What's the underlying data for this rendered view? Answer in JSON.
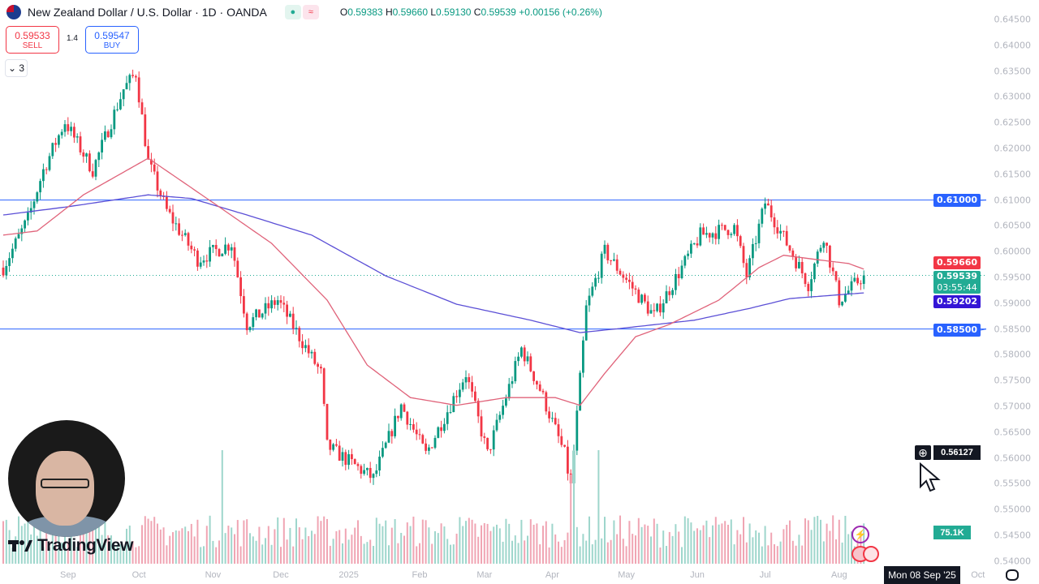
{
  "header": {
    "title": "New Zealand Dollar / U.S. Dollar · 1D · OANDA",
    "open_label": "O",
    "open": "0.59383",
    "high_label": "H",
    "high": "0.59660",
    "low_label": "L",
    "low": "0.59130",
    "close_label": "C",
    "close": "0.59539",
    "change": "+0.00156 (+0.26%)",
    "market_status_icon": "≈"
  },
  "trade": {
    "sell_price": "0.59533",
    "sell_label": "SELL",
    "spread": "1.4",
    "buy_price": "0.59547",
    "buy_label": "BUY"
  },
  "indicators_toggle": "⌄ 3",
  "price_tags": {
    "line_upper": "0.61000",
    "line_lower": "0.58500",
    "ma_fast": "0.59660",
    "last": "0.59539",
    "countdown": "03:55:44",
    "ma_slow": "0.59202",
    "crosshair": "0.56127",
    "volume": "75.1K"
  },
  "crosshair_date": "Mon 08 Sep '25",
  "branding": "TradingView",
  "colors": {
    "up": "#089981",
    "down": "#f23645",
    "ma_fast": "#e0637a",
    "ma_slow": "#5b4fd6",
    "hline": "#2962ff"
  },
  "chart_data": {
    "type": "candlestick",
    "title": "New Zealand Dollar / U.S. Dollar · 1D · OANDA",
    "ylim": [
      0.54,
      0.645
    ],
    "y_ticks": [
      "0.64500",
      "0.64000",
      "0.63500",
      "0.63000",
      "0.62500",
      "0.62000",
      "0.61500",
      "0.61000",
      "0.60500",
      "0.60000",
      "0.59500",
      "0.59000",
      "0.58500",
      "0.58000",
      "0.57500",
      "0.57000",
      "0.56500",
      "0.56000",
      "0.55500",
      "0.55000",
      "0.54500",
      "0.54000"
    ],
    "x_ticks": [
      {
        "label": "Sep",
        "i": 21
      },
      {
        "label": "Oct",
        "i": 44
      },
      {
        "label": "Nov",
        "i": 68
      },
      {
        "label": "Dec",
        "i": 90
      },
      {
        "label": "2025",
        "i": 112
      },
      {
        "label": "Feb",
        "i": 135
      },
      {
        "label": "Mar",
        "i": 156
      },
      {
        "label": "Apr",
        "i": 178
      },
      {
        "label": "May",
        "i": 202
      },
      {
        "label": "Jun",
        "i": 225
      },
      {
        "label": "Jul",
        "i": 247
      },
      {
        "label": "Aug",
        "i": 271
      },
      {
        "label": "Oct",
        "i": 316
      }
    ],
    "n_candles": 280,
    "close_anchors": [
      [
        0,
        0.5969
      ],
      [
        8,
        0.6063
      ],
      [
        13,
        0.6158
      ],
      [
        20,
        0.6252
      ],
      [
        29,
        0.6158
      ],
      [
        39,
        0.6315
      ],
      [
        43,
        0.6346
      ],
      [
        47,
        0.6173
      ],
      [
        53,
        0.6079
      ],
      [
        63,
        0.5985
      ],
      [
        74,
        0.6016
      ],
      [
        79,
        0.5859
      ],
      [
        89,
        0.5906
      ],
      [
        103,
        0.5764
      ],
      [
        105,
        0.5623
      ],
      [
        120,
        0.556
      ],
      [
        129,
        0.5702
      ],
      [
        137,
        0.5607
      ],
      [
        150,
        0.5764
      ],
      [
        157,
        0.5607
      ],
      [
        168,
        0.5812
      ],
      [
        174,
        0.5733
      ],
      [
        182,
        0.5607
      ],
      [
        184,
        0.5544
      ],
      [
        189,
        0.589
      ],
      [
        195,
        0.6
      ],
      [
        211,
        0.5875
      ],
      [
        226,
        0.6032
      ],
      [
        237,
        0.6047
      ],
      [
        241,
        0.5953
      ],
      [
        247,
        0.6095
      ],
      [
        261,
        0.5937
      ],
      [
        266,
        0.6032
      ],
      [
        271,
        0.5906
      ],
      [
        279,
        0.59539
      ]
    ],
    "ma_fast_anchors": [
      [
        0,
        0.6032
      ],
      [
        11,
        0.604
      ],
      [
        26,
        0.611
      ],
      [
        47,
        0.6181
      ],
      [
        68,
        0.6095
      ],
      [
        87,
        0.6016
      ],
      [
        105,
        0.5906
      ],
      [
        118,
        0.578
      ],
      [
        132,
        0.5717
      ],
      [
        147,
        0.5702
      ],
      [
        163,
        0.5717
      ],
      [
        179,
        0.5717
      ],
      [
        187,
        0.5702
      ],
      [
        195,
        0.5764
      ],
      [
        205,
        0.5835
      ],
      [
        216,
        0.5859
      ],
      [
        232,
        0.5906
      ],
      [
        245,
        0.5969
      ],
      [
        253,
        0.5993
      ],
      [
        263,
        0.5985
      ],
      [
        274,
        0.5977
      ],
      [
        279,
        0.5966
      ]
    ],
    "ma_slow_anchors": [
      [
        0,
        0.6071
      ],
      [
        21,
        0.6087
      ],
      [
        47,
        0.611
      ],
      [
        61,
        0.6103
      ],
      [
        79,
        0.6071
      ],
      [
        100,
        0.6032
      ],
      [
        124,
        0.5953
      ],
      [
        147,
        0.5898
      ],
      [
        171,
        0.5867
      ],
      [
        187,
        0.5843
      ],
      [
        200,
        0.5851
      ],
      [
        224,
        0.5867
      ],
      [
        242,
        0.589
      ],
      [
        255,
        0.5909
      ],
      [
        279,
        0.592
      ]
    ],
    "horizontal_lines": [
      0.61,
      0.585
    ],
    "last_price": 0.59539,
    "crosshair_price": 0.56127
  }
}
